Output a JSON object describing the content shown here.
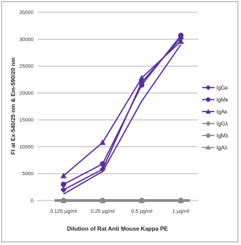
{
  "chart_data": {
    "type": "line",
    "title": "",
    "xlabel": "Dilution of Rat Anti Mouse Kappa PE",
    "ylabel": "FI at Ex-540/25 nm & Em-590/20 nm",
    "categories": [
      "0.125 µg/ml",
      "0.25 µg/ml",
      "0.5 µg/ml",
      "1 µg/ml"
    ],
    "ylim": [
      0,
      35000
    ],
    "yticks": [
      "0",
      "5000",
      "10000",
      "15000",
      "20000",
      "25000",
      "30000",
      "35000"
    ],
    "grid": true,
    "legend_position": "right",
    "series": [
      {
        "name": "IgGκ",
        "values": [
          2000,
          5800,
          22000,
          30200
        ],
        "color": "#5b2d9e",
        "marker": "diamond"
      },
      {
        "name": "IgMκ",
        "values": [
          3000,
          6800,
          21500,
          30700
        ],
        "color": "#5b2d9e",
        "marker": "circle"
      },
      {
        "name": "IgAκ",
        "values": [
          4600,
          10800,
          22800,
          29600
        ],
        "color": "#5b2d9e",
        "marker": "triangle"
      },
      {
        "name": "IgGλ",
        "values": [
          0,
          0,
          0,
          0
        ],
        "color": "#8a8a8a",
        "marker": "diamond"
      },
      {
        "name": "IgMλ",
        "values": [
          0,
          0,
          0,
          0
        ],
        "color": "#8a8a8a",
        "marker": "circle"
      },
      {
        "name": "IgAλ",
        "values": [
          0,
          0,
          0,
          0
        ],
        "color": "#8a8a8a",
        "marker": "triangle"
      }
    ],
    "extra_line": {
      "values": [
        1200,
        5400,
        18500,
        29000
      ],
      "color": "#5b2d9e"
    }
  }
}
